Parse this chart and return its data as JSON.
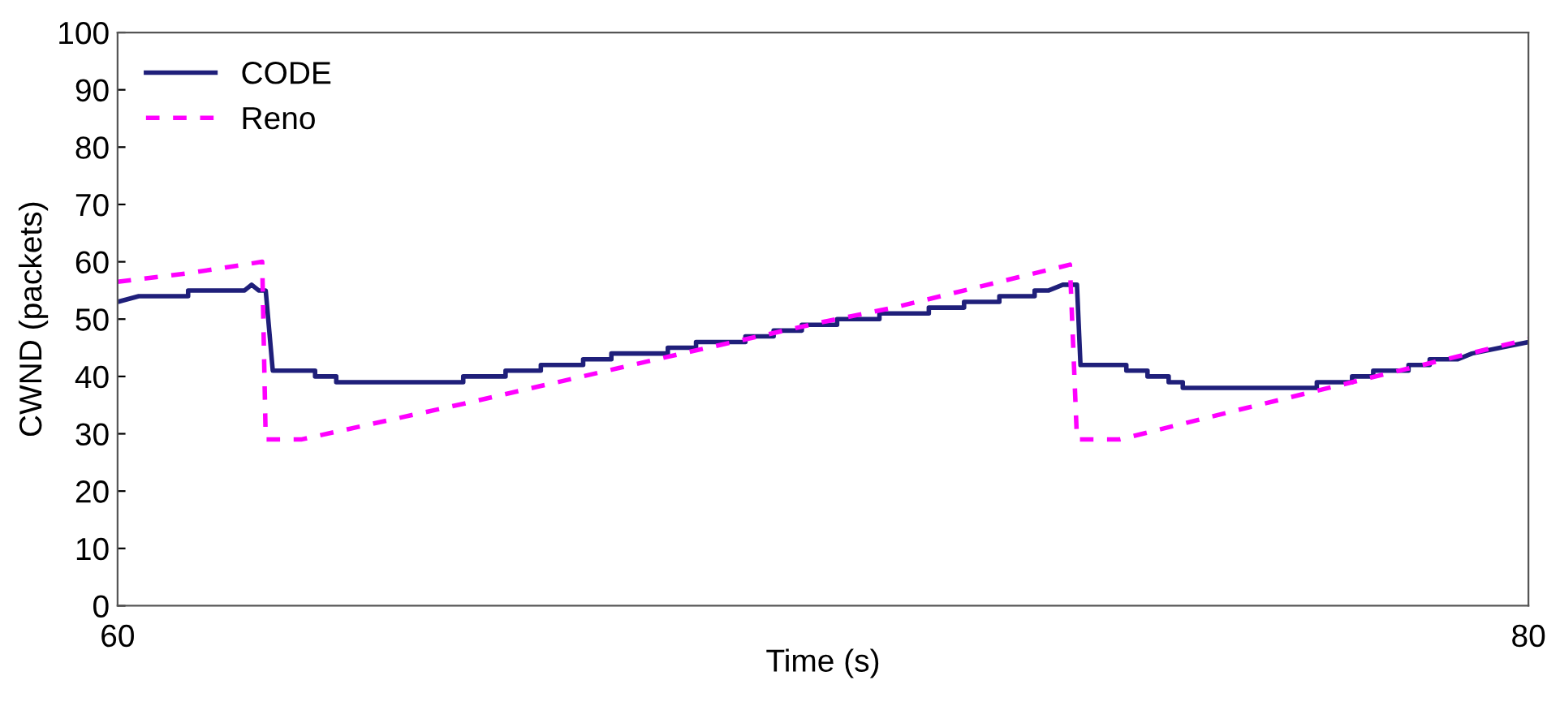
{
  "chart_data": {
    "type": "line",
    "xlabel": "Time (s)",
    "ylabel": "CWND (packets)",
    "xlim": [
      60,
      80
    ],
    "xticks": [
      60,
      80
    ],
    "ylim": [
      0,
      100
    ],
    "yticks": [
      0,
      10,
      20,
      30,
      40,
      50,
      60,
      70,
      80,
      90,
      100
    ],
    "grid": false,
    "legend": "top left",
    "marker": "none",
    "series": [
      {
        "name": "CODE",
        "color": "#1f1f7a",
        "line_style": "solid",
        "x": [
          60,
          60.3,
          61,
          61,
          61.8,
          61.9,
          62,
          62.1,
          62.2,
          62.8,
          62.8,
          63.1,
          63.1,
          64.9,
          64.9,
          65.5,
          65.5,
          66,
          66,
          66.6,
          66.6,
          67,
          67,
          67.8,
          67.8,
          68.2,
          68.2,
          68.9,
          68.9,
          69.3,
          69.3,
          69.7,
          69.7,
          70.2,
          70.2,
          70.8,
          70.8,
          71.5,
          71.5,
          72,
          72,
          72.5,
          72.5,
          73,
          73,
          73.2,
          73.4,
          73.6,
          73.65,
          74.3,
          74.3,
          74.6,
          74.6,
          74.9,
          74.9,
          75.1,
          75.1,
          77,
          77,
          77.5,
          77.5,
          77.8,
          77.8,
          78.3,
          78.3,
          78.6,
          78.6,
          79,
          79.2,
          79.6,
          80
        ],
        "values": [
          53,
          54,
          54,
          55,
          55,
          56,
          55,
          55,
          41,
          41,
          40,
          40,
          39,
          39,
          40,
          40,
          41,
          41,
          42,
          42,
          43,
          43,
          44,
          44,
          45,
          45,
          46,
          46,
          47,
          47,
          48,
          48,
          49,
          49,
          50,
          50,
          51,
          51,
          52,
          52,
          53,
          53,
          54,
          54,
          55,
          55,
          56,
          56,
          42,
          42,
          41,
          41,
          40,
          40,
          39,
          39,
          38,
          38,
          39,
          39,
          40,
          40,
          41,
          41,
          42,
          42,
          43,
          43,
          44,
          45,
          46
        ]
      },
      {
        "name": "Reno",
        "color": "#ff00ff",
        "line_style": "dashed",
        "x": [
          60,
          61,
          62.05,
          62.1,
          62.6,
          65,
          68,
          70,
          71,
          73.5,
          73.6,
          74.2,
          76,
          78,
          80
        ],
        "values": [
          56.5,
          58,
          60,
          29,
          29,
          35.5,
          44,
          49.5,
          52,
          59.5,
          29,
          29,
          34.5,
          40.5,
          46.5
        ]
      }
    ]
  }
}
